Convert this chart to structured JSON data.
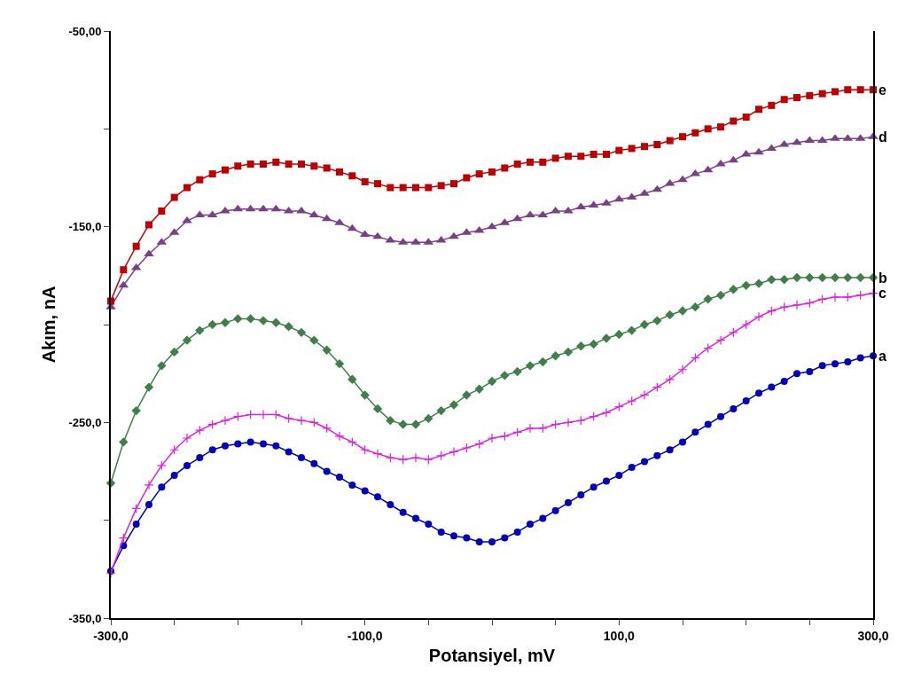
{
  "chart_data": {
    "type": "line",
    "xlabel": "Potansiyel, mV",
    "ylabel": "Akım, nA",
    "x": [
      -300,
      -290,
      -280,
      -270,
      -260,
      -250,
      -240,
      -230,
      -220,
      -210,
      -200,
      -190,
      -180,
      -170,
      -160,
      -150,
      -140,
      -130,
      -120,
      -110,
      -100,
      -90,
      -80,
      -70,
      -60,
      -50,
      -40,
      -30,
      -20,
      -10,
      0,
      10,
      20,
      30,
      40,
      50,
      60,
      70,
      80,
      90,
      100,
      110,
      120,
      130,
      140,
      150,
      160,
      170,
      180,
      190,
      200,
      210,
      220,
      230,
      240,
      250,
      260,
      270,
      280,
      290,
      300
    ],
    "xlim": [
      -300,
      300
    ],
    "xticks": [
      {
        "value": -300,
        "label": "-300,0"
      },
      {
        "value": -250,
        "label": null
      },
      {
        "value": -200,
        "label": null
      },
      {
        "value": -150,
        "label": null
      },
      {
        "value": -100,
        "label": "-100,0"
      },
      {
        "value": -50,
        "label": null
      },
      {
        "value": 0,
        "label": null
      },
      {
        "value": 50,
        "label": null
      },
      {
        "value": 100,
        "label": "100,0"
      },
      {
        "value": 150,
        "label": null
      },
      {
        "value": 200,
        "label": null
      },
      {
        "value": 250,
        "label": null
      },
      {
        "value": 300,
        "label": "300,0"
      }
    ],
    "ylim": [
      -350,
      -50
    ],
    "yticks": [
      {
        "value": -350,
        "label": "-350,0"
      },
      {
        "value": -300,
        "label": null
      },
      {
        "value": -250,
        "label": "-250,0"
      },
      {
        "value": -200,
        "label": null
      },
      {
        "value": -150,
        "label": "-150,0"
      },
      {
        "value": -100,
        "label": null
      },
      {
        "value": -50,
        "label": "-50,00"
      }
    ],
    "grid": false,
    "legend": false,
    "line_style": "solid",
    "series": [
      {
        "name": "a",
        "color": "#0000c0",
        "marker": "circle",
        "values": [
          -326,
          -313,
          -302,
          -292,
          -283,
          -277,
          -272,
          -268,
          -264,
          -262,
          -261,
          -260,
          -261,
          -262,
          -265,
          -268,
          -271,
          -275,
          -278,
          -282,
          -285,
          -288,
          -292,
          -296,
          -299,
          -302,
          -306,
          -308,
          -309,
          -311,
          -311,
          -309,
          -306,
          -302,
          -299,
          -295,
          -291,
          -287,
          -283,
          -280,
          -277,
          -273,
          -270,
          -267,
          -264,
          -260,
          -255,
          -251,
          -247,
          -243,
          -239,
          -235,
          -232,
          -229,
          -225,
          -224,
          -221,
          -220,
          -219,
          -217,
          -216
        ]
      },
      {
        "name": "b",
        "color": "#3f8048",
        "marker": "diamond",
        "values": [
          -281,
          -260,
          -244,
          -232,
          -221,
          -214,
          -208,
          -203,
          -200,
          -199,
          -197,
          -197,
          -198,
          -199,
          -201,
          -204,
          -208,
          -213,
          -220,
          -228,
          -236,
          -243,
          -249,
          -251,
          -251,
          -248,
          -244,
          -241,
          -236,
          -233,
          -229,
          -226,
          -224,
          -221,
          -219,
          -216,
          -214,
          -211,
          -210,
          -207,
          -205,
          -203,
          -200,
          -198,
          -195,
          -193,
          -191,
          -187,
          -185,
          -182,
          -180,
          -179,
          -177,
          -177,
          -176,
          -176,
          -176,
          -176,
          -176,
          -176,
          -176
        ]
      },
      {
        "name": "c",
        "color": "#e020e0",
        "marker": "cross",
        "values": [
          -327,
          -309,
          -294,
          -282,
          -272,
          -264,
          -258,
          -254,
          -251,
          -249,
          -247,
          -246,
          -246,
          -246,
          -248,
          -249,
          -250,
          -253,
          -257,
          -260,
          -264,
          -266,
          -268,
          -269,
          -268,
          -269,
          -267,
          -265,
          -263,
          -261,
          -258,
          -257,
          -255,
          -253,
          -253,
          -251,
          -250,
          -249,
          -247,
          -245,
          -242,
          -239,
          -236,
          -232,
          -228,
          -223,
          -217,
          -212,
          -208,
          -204,
          -200,
          -196,
          -193,
          -191,
          -190,
          -189,
          -187,
          -186,
          -186,
          -185,
          -184
        ]
      },
      {
        "name": "d",
        "color": "#7b3f8a",
        "marker": "triangle",
        "values": [
          -191,
          -180,
          -171,
          -164,
          -158,
          -153,
          -147,
          -144,
          -144,
          -142,
          -141,
          -141,
          -141,
          -141,
          -142,
          -142,
          -144,
          -146,
          -148,
          -151,
          -154,
          -155,
          -157,
          -158,
          -158,
          -158,
          -157,
          -155,
          -153,
          -152,
          -150,
          -148,
          -146,
          -144,
          -144,
          -142,
          -142,
          -140,
          -139,
          -138,
          -136,
          -135,
          -133,
          -131,
          -128,
          -126,
          -123,
          -121,
          -118,
          -116,
          -113,
          -112,
          -110,
          -108,
          -107,
          -106,
          -106,
          -105,
          -105,
          -105,
          -104
        ]
      },
      {
        "name": "e",
        "color": "#c00000",
        "marker": "square",
        "values": [
          -188,
          -172,
          -160,
          -149,
          -142,
          -135,
          -130,
          -126,
          -123,
          -121,
          -119,
          -118,
          -118,
          -117,
          -118,
          -118,
          -119,
          -120,
          -122,
          -124,
          -127,
          -128,
          -130,
          -130,
          -130,
          -130,
          -129,
          -128,
          -125,
          -123,
          -122,
          -120,
          -118,
          -117,
          -117,
          -115,
          -114,
          -114,
          -113,
          -113,
          -111,
          -110,
          -109,
          -108,
          -106,
          -104,
          -102,
          -100,
          -99,
          -96,
          -94,
          -90,
          -88,
          -85,
          -84,
          -83,
          -82,
          -81,
          -80,
          -80,
          -80
        ]
      }
    ]
  }
}
